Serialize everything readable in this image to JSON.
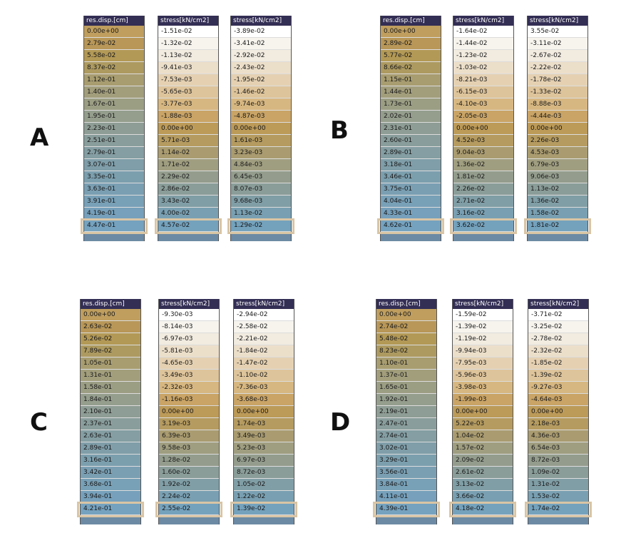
{
  "groups": [
    {
      "letter": "A",
      "headers": [
        "res.disp.[cm]",
        "stress[kN/cm2]",
        "stress[kN/cm2]"
      ],
      "columns": [
        [
          "0.00e+00",
          "2.79e-02",
          "5.58e-02",
          "8.37e-02",
          "1.12e-01",
          "1.40e-01",
          "1.67e-01",
          "1.95e-01",
          "2.23e-01",
          "2.51e-01",
          "2.79e-01",
          "3.07e-01",
          "3.35e-01",
          "3.63e-01",
          "3.91e-01",
          "4.19e-01",
          "4.47e-01"
        ],
        [
          "-1.51e-02",
          "-1.32e-02",
          "-1.13e-02",
          "-9.41e-03",
          "-7.53e-03",
          "-5.65e-03",
          "-3.77e-03",
          "-1.88e-03",
          "0.00e+00",
          "5.71e-03",
          "1.14e-02",
          "1.71e-02",
          "2.29e-02",
          "2.86e-02",
          "3.43e-02",
          "4.00e-02",
          "4.57e-02"
        ],
        [
          "-3.89e-02",
          "-3.41e-02",
          "-2.92e-02",
          "-2.43e-02",
          "-1.95e-02",
          "-1.46e-02",
          "-9.74e-03",
          "-4.87e-03",
          "0.00e+00",
          "1.61e-03",
          "3.23e-03",
          "4.84e-03",
          "6.45e-03",
          "8.07e-03",
          "9.68e-03",
          "1.13e-02",
          "1.29e-02"
        ]
      ]
    },
    {
      "letter": "B",
      "headers": [
        "res.disp.[cm]",
        "stress[kN/cm2]",
        "stress[kN/cm2]"
      ],
      "columns": [
        [
          "0.00e+00",
          "2.89e-02",
          "5.77e-02",
          "8.66e-02",
          "1.15e-01",
          "1.44e-01",
          "1.73e-01",
          "2.02e-01",
          "2.31e-01",
          "2.60e-01",
          "2.89e-01",
          "3.18e-01",
          "3.46e-01",
          "3.75e-01",
          "4.04e-01",
          "4.33e-01",
          "4.62e-01"
        ],
        [
          "-1.64e-02",
          "-1.44e-02",
          "-1.23e-02",
          "-1.03e-02",
          "-8.21e-03",
          "-6.15e-03",
          "-4.10e-03",
          "-2.05e-03",
          "0.00e+00",
          "4.52e-03",
          "9.04e-03",
          "1.36e-02",
          "1.81e-02",
          "2.26e-02",
          "2.71e-02",
          "3.16e-02",
          "3.62e-02"
        ],
        [
          "3.55e-02",
          "-3.11e-02",
          "-2.67e-02",
          "-2.22e-02",
          "-1.78e-02",
          "-1.33e-02",
          "-8.88e-03",
          "-4.44e-03",
          "0.00e+00",
          "2.26e-03",
          "4.53e-03",
          "6.79e-03",
          "9.06e-03",
          "1.13e-02",
          "1.36e-02",
          "1.58e-02",
          "1.81e-02"
        ]
      ]
    },
    {
      "letter": "C",
      "headers": [
        "res.disp.[cm]",
        "stress[kN/cm2]",
        "stress[kN/cm2]"
      ],
      "columns": [
        [
          "0.00e+00",
          "2.63e-02",
          "5.26e-02",
          "7.89e-02",
          "1.05e-01",
          "1.31e-01",
          "1.58e-01",
          "1.84e-01",
          "2.10e-01",
          "2.37e-01",
          "2.63e-01",
          "2.89e-01",
          "3.16e-01",
          "3.42e-01",
          "3.68e-01",
          "3.94e-01",
          "4.21e-01"
        ],
        [
          "-9.30e-03",
          "-8.14e-03",
          "-6.97e-03",
          "-5.81e-03",
          "-4.65e-03",
          "-3.49e-03",
          "-2.32e-03",
          "-1.16e-03",
          "0.00e+00",
          "3.19e-03",
          "6.39e-03",
          "9.58e-03",
          "1.28e-02",
          "1.60e-02",
          "1.92e-02",
          "2.24e-02",
          "2.55e-02"
        ],
        [
          "-2.94e-02",
          "-2.58e-02",
          "-2.21e-02",
          "-1.84e-02",
          "-1.47e-02",
          "-1.10e-02",
          "-7.36e-03",
          "-3.68e-03",
          "0.00e+00",
          "1.74e-03",
          "3.49e-03",
          "5.23e-03",
          "6.97e-03",
          "8.72e-03",
          "1.05e-02",
          "1.22e-02",
          "1.39e-02"
        ]
      ]
    },
    {
      "letter": "D",
      "headers": [
        "res.disp.[cm]",
        "stress[kN/cm2]",
        "stress[kN/cm2]"
      ],
      "columns": [
        [
          "0.00e+00",
          "2.74e-02",
          "5.48e-02",
          "8.23e-02",
          "1.10e-01",
          "1.37e-01",
          "1.65e-01",
          "1.92e-01",
          "2.19e-01",
          "2.47e-01",
          "2.74e-01",
          "3.02e-01",
          "3.29e-01",
          "3.56e-01",
          "3.84e-01",
          "4.11e-01",
          "4.39e-01"
        ],
        [
          "-1.59e-02",
          "-1.39e-02",
          "-1.19e-02",
          "-9.94e-03",
          "-7.95e-03",
          "-5.96e-03",
          "-3.98e-03",
          "-1.99e-03",
          "0.00e+00",
          "5.22e-03",
          "1.04e-02",
          "1.57e-02",
          "2.09e-02",
          "2.61e-02",
          "3.13e-02",
          "3.66e-02",
          "4.18e-02"
        ],
        [
          "-3.71e-02",
          "-3.25e-02",
          "-2.78e-02",
          "-2.32e-02",
          "-1.85e-02",
          "-1.39e-02",
          "-9.27e-03",
          "-4.64e-03",
          "0.00e+00",
          "2.18e-03",
          "4.36e-03",
          "6.54e-03",
          "8.72e-03",
          "1.09e-02",
          "1.31e-02",
          "1.53e-02",
          "1.74e-02"
        ]
      ]
    }
  ],
  "palettes": {
    "disp": [
      "#bf9e5e",
      "#b89758",
      "#b39956",
      "#ad9a60",
      "#a89d70",
      "#a29e7c",
      "#9c9e84",
      "#959e8d",
      "#8e9d95",
      "#899e9c",
      "#849ea3",
      "#7f9ea9",
      "#7c9fae",
      "#7a9fb3",
      "#78a0b7",
      "#76a0bb",
      "#75a2bf"
    ],
    "stress": [
      "#ffffff",
      "#f7f4ee",
      "#f1ebe0",
      "#ecdfca",
      "#e5d1b2",
      "#dec49b",
      "#d7b781",
      "#c9a466",
      "#bc9a58",
      "#b59b60",
      "#aa9c70",
      "#a09e80",
      "#949d8d",
      "#8a9d99",
      "#809ea6",
      "#79a0b2",
      "#74a2bd"
    ],
    "header_bg": "#332e54",
    "footer_bg": "#6c8aa4",
    "highlight": "#d9c5a5"
  }
}
